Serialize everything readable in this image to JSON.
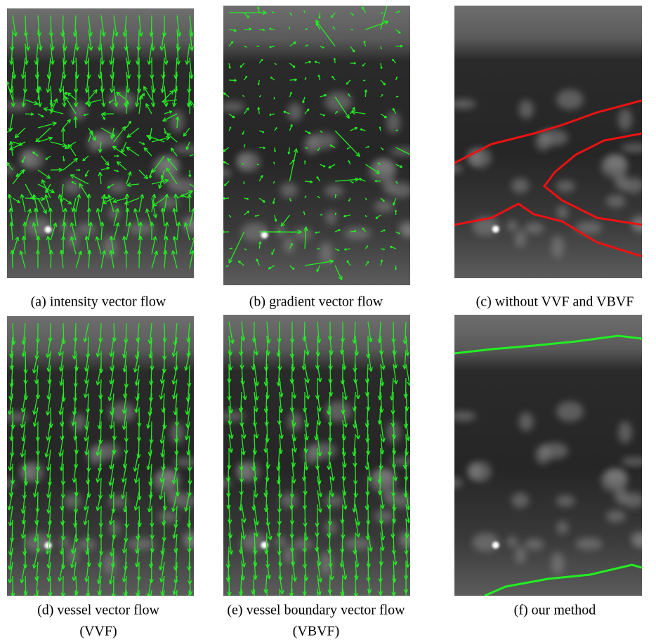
{
  "panels": [
    {
      "caption": [
        "(a) intensity vector flow"
      ]
    },
    {
      "caption": [
        "(b) gradient vector flow"
      ]
    },
    {
      "caption": [
        "(c) without VVF and VBVF"
      ]
    },
    {
      "caption": [
        "(d) vessel vector flow",
        "(VVF)"
      ]
    },
    {
      "caption": [
        "(e) vessel boundary vector flow",
        "(VBVF)"
      ]
    },
    {
      "caption": [
        "(f) our method"
      ]
    }
  ]
}
